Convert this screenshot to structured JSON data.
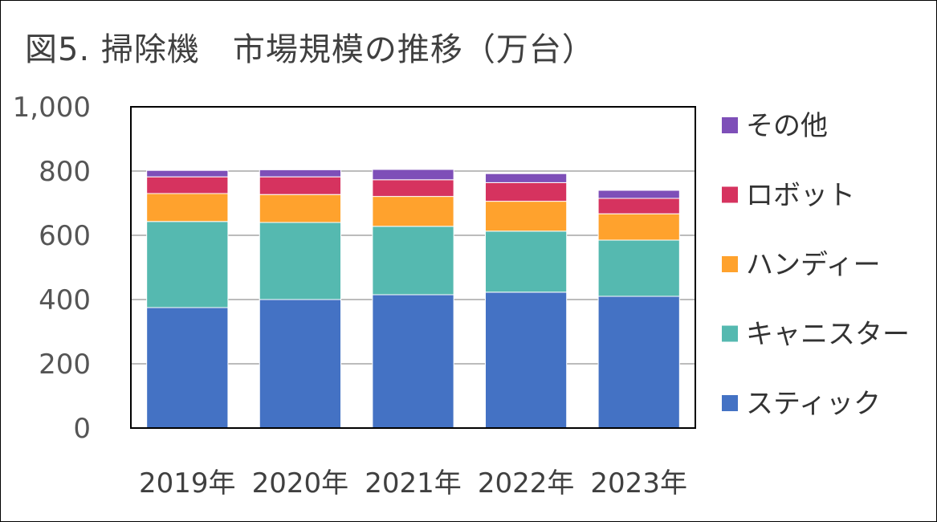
{
  "chart_data": {
    "type": "bar",
    "stacked": true,
    "title": "図5. 掃除機　市場規模の推移（万台）",
    "xlabel": "",
    "ylabel": "",
    "categories": [
      "2019年",
      "2020年",
      "2021年",
      "2022年",
      "2023年"
    ],
    "ylim": [
      0,
      1000
    ],
    "yticks": [
      0,
      200,
      400,
      600,
      800,
      1000
    ],
    "ytick_labels": [
      "0",
      "200",
      "400",
      "600",
      "800",
      "1,000"
    ],
    "grid": true,
    "legend_position": "right",
    "series": [
      {
        "name": "スティック",
        "color": "#4472C4",
        "values": [
          375,
          400,
          415,
          423,
          410
        ]
      },
      {
        "name": "キャニスター",
        "color": "#55B9B0",
        "values": [
          268,
          240,
          213,
          190,
          175
        ]
      },
      {
        "name": "ハンディー",
        "color": "#FFA22D",
        "values": [
          87,
          87,
          93,
          93,
          82
        ]
      },
      {
        "name": "ロボット",
        "color": "#D6335F",
        "values": [
          52,
          55,
          52,
          58,
          48
        ]
      },
      {
        "name": "その他",
        "color": "#7E4FB8",
        "values": [
          20,
          22,
          32,
          28,
          25
        ]
      }
    ]
  }
}
